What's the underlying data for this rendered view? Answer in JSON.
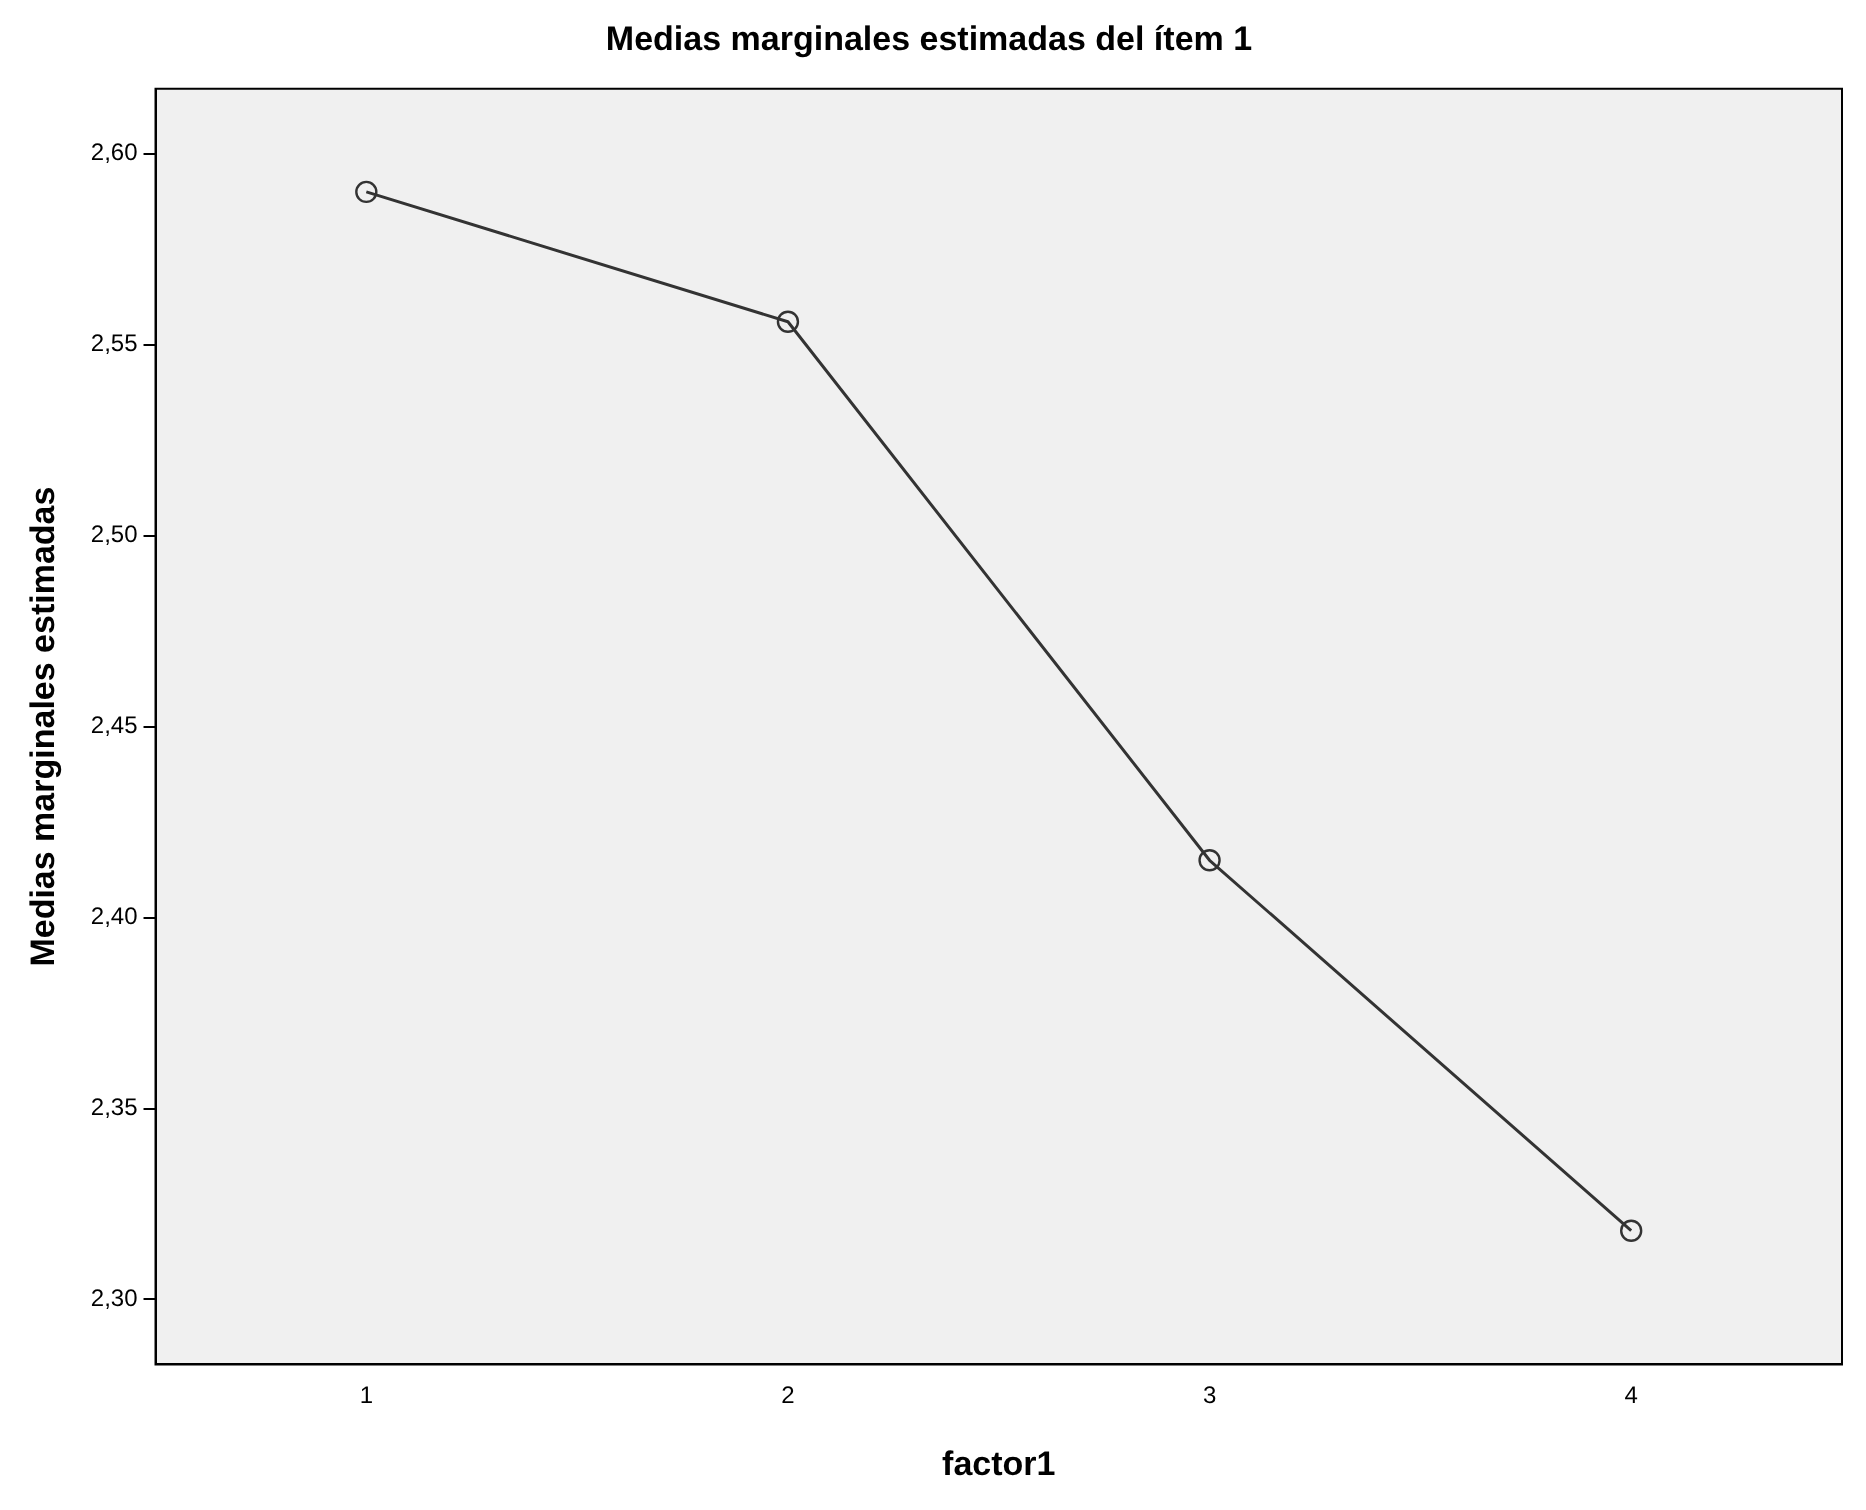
{
  "chart_data": {
    "type": "line",
    "title": "Medias marginales estimadas del ítem 1",
    "xlabel": "factor1",
    "ylabel": "Medias marginales estimadas",
    "categories": [
      "1",
      "2",
      "3",
      "4"
    ],
    "series": [
      {
        "color": "#333333",
        "values": [
          2.59,
          2.556,
          2.415,
          2.318
        ]
      }
    ],
    "ylim": [
      2.283,
      2.617
    ],
    "yticks": [
      {
        "value": 2.3,
        "label": "2,30"
      },
      {
        "value": 2.35,
        "label": "2,35"
      },
      {
        "value": 2.4,
        "label": "2,40"
      },
      {
        "value": 2.45,
        "label": "2,45"
      },
      {
        "value": 2.5,
        "label": "2,50"
      },
      {
        "value": 2.55,
        "label": "2,55"
      },
      {
        "value": 2.6,
        "label": "2,60"
      }
    ],
    "grid": false,
    "legend": false,
    "marker": "circle",
    "line_style": "solid"
  }
}
